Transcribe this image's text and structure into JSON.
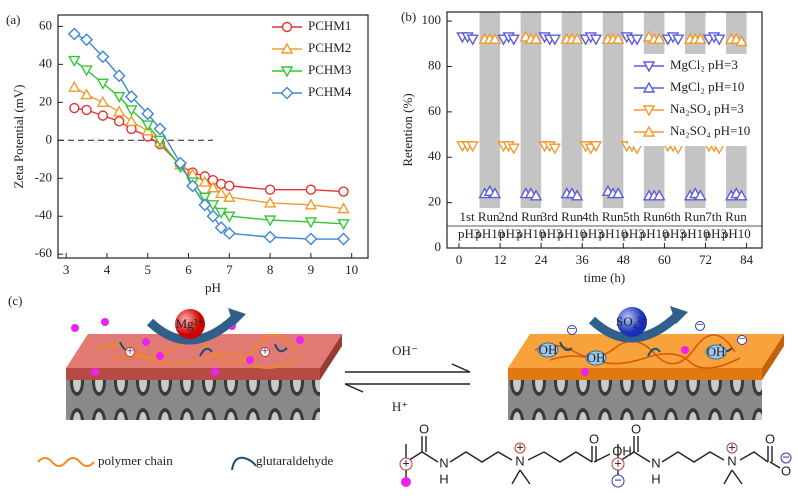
{
  "chart_data": [
    {
      "type": "line",
      "panel_label": "(a)",
      "x_label": "pH",
      "y_label": "Zeta Potential (mV)",
      "x": [
        3.2,
        3.5,
        3.9,
        4.3,
        4.6,
        5.0,
        5.3,
        5.8,
        6.1,
        6.4,
        6.6,
        6.8,
        7.0,
        8.0,
        9.0,
        9.8
      ],
      "xlim": [
        2.8,
        10.4
      ],
      "xticks": [
        3,
        4,
        5,
        6,
        7,
        8,
        9,
        10
      ],
      "ylim": [
        -62,
        66
      ],
      "yticks": [
        -60,
        -40,
        -20,
        0,
        20,
        40,
        60
      ],
      "legend": "upper right",
      "series": [
        {
          "name": "PCHM1",
          "color": "#e8312f",
          "marker": "circle",
          "values": [
            17,
            16,
            13,
            10,
            6,
            2,
            -2,
            -13,
            -17,
            -19,
            -21,
            -23,
            -24,
            -26,
            -26,
            -27
          ]
        },
        {
          "name": "PCHM2",
          "color": "#f29b2e",
          "marker": "triangle-up",
          "values": [
            28,
            24,
            20,
            15,
            10,
            5,
            -1,
            -13,
            -18,
            -22,
            -25,
            -28,
            -30,
            -33,
            -34,
            -36
          ]
        },
        {
          "name": "PCHM3",
          "color": "#33c733",
          "marker": "triangle-down",
          "values": [
            42,
            37,
            30,
            23,
            16,
            8,
            0,
            -14,
            -22,
            -30,
            -34,
            -38,
            -40,
            -42,
            -43,
            -44
          ]
        },
        {
          "name": "PCHM4",
          "color": "#3f86d6",
          "marker": "diamond",
          "values": [
            56,
            53,
            44,
            34,
            23,
            14,
            6,
            -12,
            -24,
            -34,
            -40,
            -46,
            -49,
            -51,
            -52,
            -52
          ]
        }
      ]
    },
    {
      "type": "scatter",
      "panel_label": "(b)",
      "x_label": "time (h)",
      "y_label": "Retention (%)",
      "xlim": [
        -3.5,
        88.5
      ],
      "xticks": [
        0,
        12,
        24,
        36,
        48,
        60,
        72,
        84
      ],
      "ylim": [
        0,
        104
      ],
      "yticks": [
        0,
        20,
        40,
        60,
        80,
        100
      ],
      "legend": "center right",
      "shaded_spans": [
        [
          6,
          12
        ],
        [
          18,
          24
        ],
        [
          30,
          36
        ],
        [
          42,
          48
        ],
        [
          54,
          60
        ],
        [
          66,
          72
        ],
        [
          78,
          84
        ]
      ],
      "run_labels": [
        "1st Run",
        "2nd Run",
        "3rd Run",
        "4th Run",
        "5th Run",
        "6th Run",
        "7th Run"
      ],
      "phase_labels": [
        "pH3",
        "pH10"
      ],
      "series": [
        {
          "name": "MgCl₂ pH=3",
          "color": "#5b5bdb",
          "marker": "triangle-down",
          "x": [
            1,
            2.5,
            4,
            13,
            14.5,
            16,
            25,
            26.5,
            28,
            37,
            38.5,
            40,
            49,
            50.5,
            52,
            61,
            62.5,
            64,
            73,
            74.5,
            76
          ],
          "values": [
            93,
            93,
            92,
            92,
            93,
            92,
            93,
            92,
            92,
            92,
            93,
            92,
            93,
            92,
            92,
            92,
            93,
            92,
            92,
            93,
            92
          ]
        },
        {
          "name": "MgCl₂ pH=10",
          "color": "#5b5bdb",
          "marker": "triangle-up",
          "x": [
            7.5,
            9,
            10.5,
            19.5,
            21,
            22.5,
            31.5,
            33,
            34.5,
            43.5,
            45,
            46.5,
            55.5,
            57,
            58.5,
            67.5,
            69,
            70.5,
            79.5,
            81,
            82.5
          ],
          "values": [
            24,
            25,
            24,
            24,
            24,
            23,
            24,
            24,
            23,
            25,
            24,
            24,
            23,
            23,
            23,
            23,
            24,
            23,
            23,
            24,
            23
          ]
        },
        {
          "name": "Na₂SO₄ pH=3",
          "color": "#f09b2d",
          "marker": "triangle-down",
          "x": [
            1,
            2.5,
            4,
            13,
            14.5,
            16,
            25,
            26.5,
            28,
            37,
            38.5,
            40,
            49,
            50.5,
            52,
            61,
            62.5,
            64,
            73,
            74.5,
            76
          ],
          "values": [
            45,
            45,
            45,
            45,
            45,
            44,
            45,
            45,
            44,
            45,
            44,
            45,
            45,
            45,
            44,
            45,
            45,
            44,
            45,
            45,
            44
          ]
        },
        {
          "name": "Na₂SO₄ pH=10",
          "color": "#f09b2d",
          "marker": "triangle-up",
          "x": [
            7.5,
            9,
            10.5,
            19.5,
            21,
            22.5,
            31.5,
            33,
            34.5,
            43.5,
            45,
            46.5,
            55.5,
            57,
            58.5,
            67.5,
            69,
            70.5,
            79.5,
            81,
            82.5
          ],
          "values": [
            92,
            92,
            92,
            93,
            92,
            92,
            92,
            92,
            92,
            92,
            92,
            92,
            93,
            92,
            92,
            92,
            92,
            92,
            92,
            92,
            91
          ]
        }
      ]
    }
  ],
  "schematic": {
    "panel_label": "(c)",
    "ion_left": "Mg²⁺",
    "ion_right": "SO₄²⁻",
    "forward": "OH⁻",
    "backward": "H⁺",
    "hydroxide_tag": "OH",
    "charge_plus": "+",
    "charge_minus": "−",
    "legend_polymer": "polymer chain",
    "legend_crosslinker": "glutaraldehyde",
    "atoms": {
      "oxygen": "O",
      "nitrogen": "N",
      "hydrogen": "H",
      "acid": "OH"
    }
  }
}
